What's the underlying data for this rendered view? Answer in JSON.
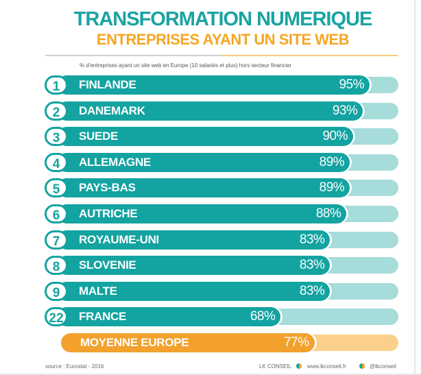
{
  "header": {
    "title": "TRANSFORMATION NUMERIQUE",
    "subtitle": "ENTREPRISES AYANT UN SITE WEB",
    "note": "% d'entreprises ayant un site web en Europe (10 salariés et plus) hors secteur financier"
  },
  "colors": {
    "teal_dark": "#13a3a0",
    "teal_light": "#a6dcd9",
    "orange_dark": "#f2a12c",
    "orange_light": "#fad08a"
  },
  "chart_data": {
    "type": "bar",
    "orientation": "horizontal",
    "title": "TRANSFORMATION NUMERIQUE",
    "subtitle": "ENTREPRISES AYANT UN SITE WEB",
    "xlim": [
      0,
      100
    ],
    "rows": [
      {
        "rank": "1",
        "country": "FINLANDE",
        "value": 95,
        "label": "95%"
      },
      {
        "rank": "2",
        "country": "DANEMARK",
        "value": 93,
        "label": "93%"
      },
      {
        "rank": "3",
        "country": "SUEDE",
        "value": 90,
        "label": "90%"
      },
      {
        "rank": "4",
        "country": "ALLEMAGNE",
        "value": 89,
        "label": "89%"
      },
      {
        "rank": "5",
        "country": "PAYS-BAS",
        "value": 89,
        "label": "89%"
      },
      {
        "rank": "6",
        "country": "AUTRICHE",
        "value": 88,
        "label": "88%"
      },
      {
        "rank": "7",
        "country": "ROYAUME-UNI",
        "value": 83,
        "label": "83%"
      },
      {
        "rank": "8",
        "country": "SLOVENIE",
        "value": 83,
        "label": "83%"
      },
      {
        "rank": "9",
        "country": "MALTE",
        "value": 83,
        "label": "83%"
      },
      {
        "rank": "22",
        "country": "FRANCE",
        "value": 68,
        "label": "68%"
      }
    ],
    "average": {
      "country": "MOYENNE EUROPE",
      "value": 77,
      "label": "77%"
    }
  },
  "footer": {
    "source": "source : Eurostat - 2016",
    "brand": "LK CONSEIL",
    "website": "www.lkconseil.fr",
    "handle": "@lkconseil"
  }
}
